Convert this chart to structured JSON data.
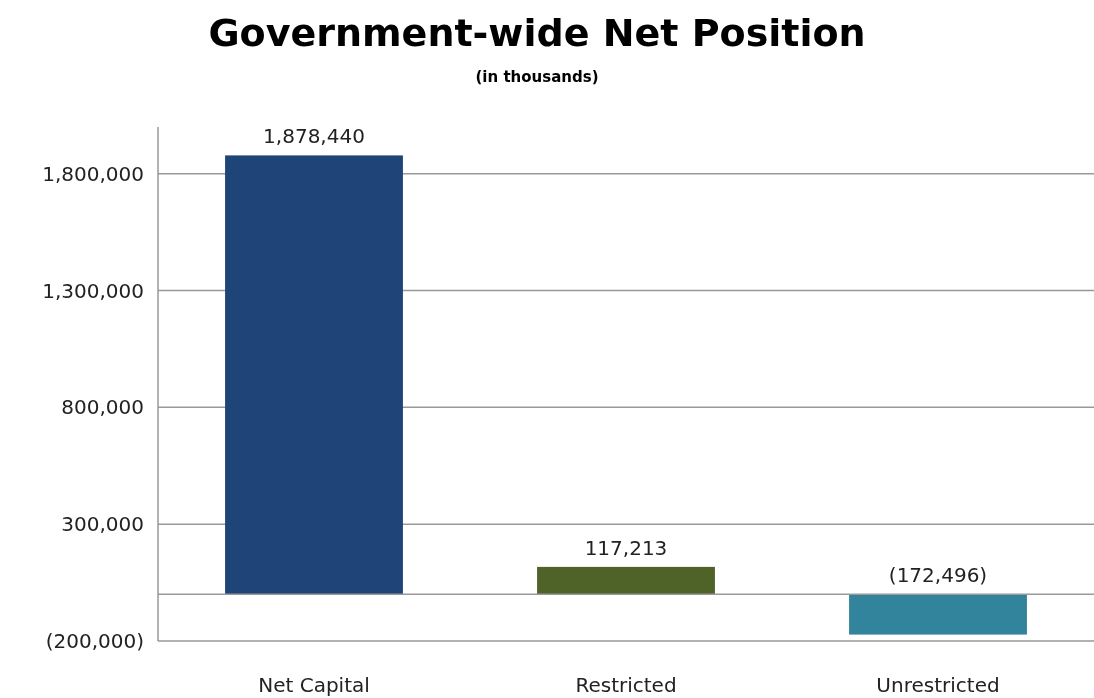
{
  "chart_data": {
    "type": "bar",
    "title": "Government-wide Net Position",
    "subtitle": "(in thousands)",
    "categories": [
      "Net Capital",
      "Restricted",
      "Unrestricted"
    ],
    "values": [
      1878440,
      117213,
      -172496
    ],
    "colors": [
      "#1f4477",
      "#4f6228",
      "#31849b"
    ],
    "value_labels": [
      "1,878,440",
      "117,213",
      "(172,496)"
    ],
    "ylim": [
      -200000,
      2000000
    ],
    "yticks": [
      {
        "value": -200000,
        "label": "(200,000)"
      },
      {
        "value": 300000,
        "label": "300,000"
      },
      {
        "value": 800000,
        "label": "800,000"
      },
      {
        "value": 1300000,
        "label": "1,300,000"
      },
      {
        "value": 1800000,
        "label": "1,800,000"
      }
    ],
    "grid": "y"
  }
}
